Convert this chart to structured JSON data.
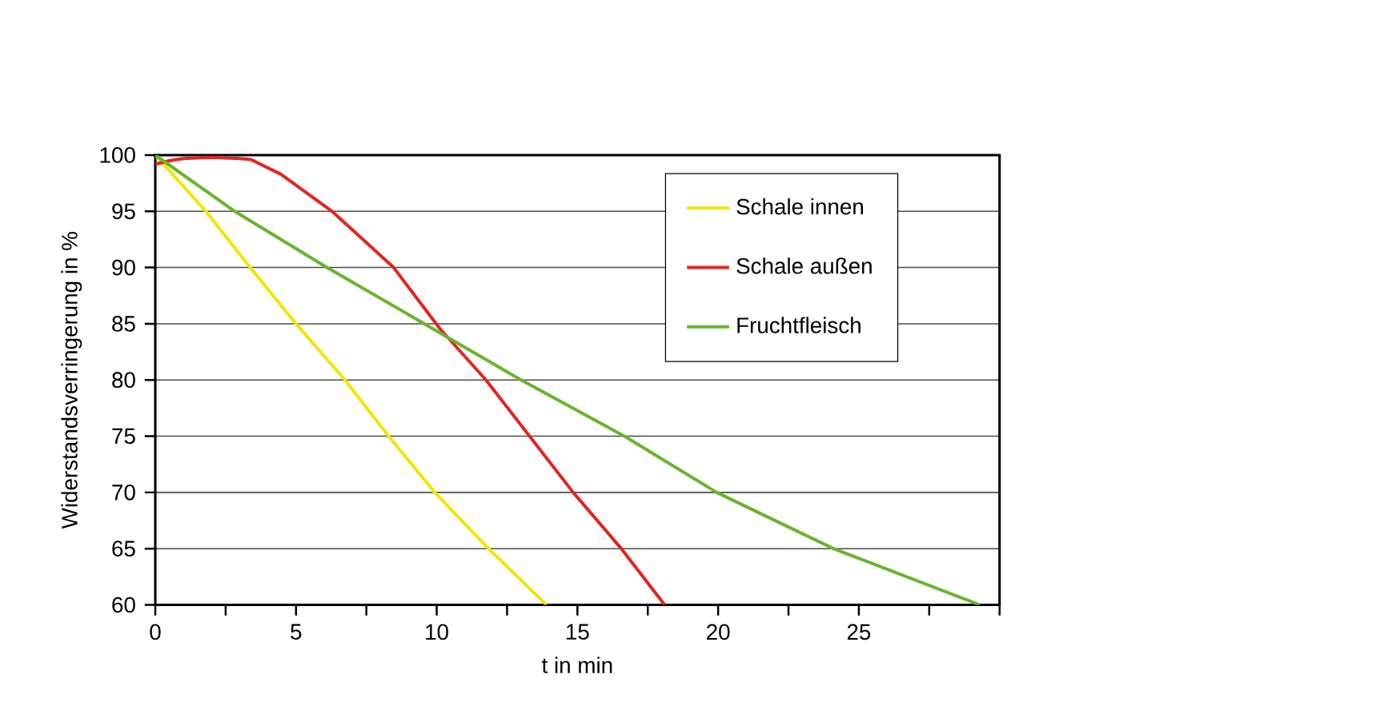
{
  "chart_data": {
    "type": "line",
    "xlabel": "t in min",
    "ylabel": "Widerstandsverringerung in %",
    "xlim": [
      0,
      30
    ],
    "ylim": [
      60,
      100
    ],
    "xticks": [
      0,
      {
        "value": 2.5,
        "label": null
      },
      5,
      {
        "value": 7.5,
        "label": null
      },
      10,
      {
        "value": 12.5,
        "label": null
      },
      15,
      {
        "value": 17.5,
        "label": null
      },
      20,
      {
        "value": 22.5,
        "label": null
      },
      25,
      {
        "value": 27.5,
        "label": null
      },
      {
        "value": 30,
        "label": null
      }
    ],
    "yticks": [
      60,
      65,
      70,
      75,
      80,
      85,
      90,
      95,
      100
    ],
    "grid": "y",
    "legend": "top right",
    "marker": "none",
    "line_style": "solid",
    "series": [
      {
        "name": "Schale innen",
        "color": "#f2e600",
        "x": [
          0,
          0.9,
          1.8,
          3.37,
          5.0,
          6.74,
          8.29,
          9.93,
          11.84,
          13.9
        ],
        "values": [
          100,
          97.5,
          95,
          90,
          85,
          80,
          75,
          70,
          65,
          60
        ]
      },
      {
        "name": "Schale außen",
        "color": "#e32421",
        "x": [
          0,
          0.5,
          1,
          2,
          3,
          3.4,
          4.46,
          6.28,
          8.47,
          10.1,
          11.75,
          13.3,
          14.85,
          16.56,
          18.1
        ],
        "values": [
          99.2,
          99.5,
          99.7,
          99.8,
          99.7,
          99.6,
          98.3,
          95,
          90,
          84.6,
          80,
          75,
          70,
          65,
          60
        ]
      },
      {
        "name": "Fruchtfleisch",
        "color": "#6ab42d",
        "x": [
          0,
          2.82,
          6.1,
          9.56,
          13.0,
          16.67,
          19.95,
          24.1,
          29.3
        ],
        "values": [
          100,
          95,
          90,
          85,
          80,
          75,
          70,
          65,
          60
        ]
      }
    ]
  }
}
